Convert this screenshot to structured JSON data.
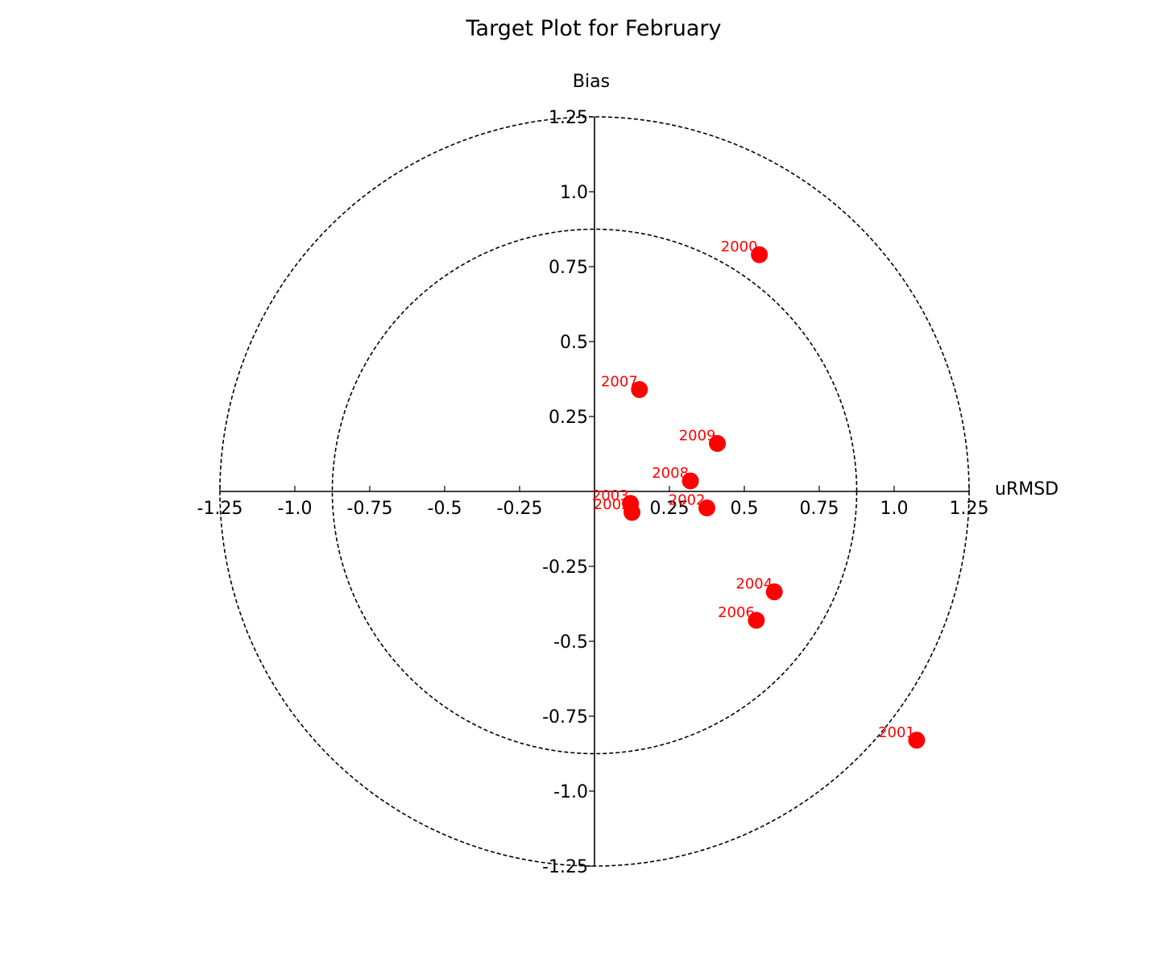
{
  "chart_data": {
    "type": "scatter",
    "title": "Target Plot for February",
    "xlabel": "uRMSD",
    "ylabel": "Bias",
    "xlim": [
      -1.25,
      1.25
    ],
    "ylim": [
      -1.25,
      1.25
    ],
    "grid": false,
    "x_ticks": [
      "-1.25",
      "-1.0",
      "-0.75",
      "-0.5",
      "-0.25",
      "0.25",
      "0.5",
      "0.75",
      "1.0",
      "1.25"
    ],
    "x_tick_values": [
      -1.25,
      -1.0,
      -0.75,
      -0.5,
      -0.25,
      0.25,
      0.5,
      0.75,
      1.0,
      1.25
    ],
    "y_ticks": [
      "1.25",
      "1.0",
      "0.75",
      "0.5",
      "0.25",
      "-0.25",
      "-0.5",
      "-0.75",
      "-1.0",
      "-1.25"
    ],
    "y_tick_values": [
      1.25,
      1.0,
      0.75,
      0.5,
      0.25,
      -0.25,
      -0.5,
      -0.75,
      -1.0,
      -1.25
    ],
    "circles": [
      0.875,
      1.25
    ],
    "marker_color": "#ff0000",
    "label_color": "#ff0000",
    "points": [
      {
        "label": "2000",
        "x": 0.55,
        "y": 0.79
      },
      {
        "label": "2001",
        "x": 1.075,
        "y": -0.83
      },
      {
        "label": "2002",
        "x": 0.375,
        "y": -0.055
      },
      {
        "label": "2003",
        "x": 0.12,
        "y": -0.04
      },
      {
        "label": "2005",
        "x": 0.125,
        "y": -0.07
      },
      {
        "label": "2004",
        "x": 0.6,
        "y": -0.335
      },
      {
        "label": "2006",
        "x": 0.54,
        "y": -0.43
      },
      {
        "label": "2007",
        "x": 0.15,
        "y": 0.34
      },
      {
        "label": "2008",
        "x": 0.32,
        "y": 0.035
      },
      {
        "label": "2009",
        "x": 0.41,
        "y": 0.16
      }
    ]
  }
}
